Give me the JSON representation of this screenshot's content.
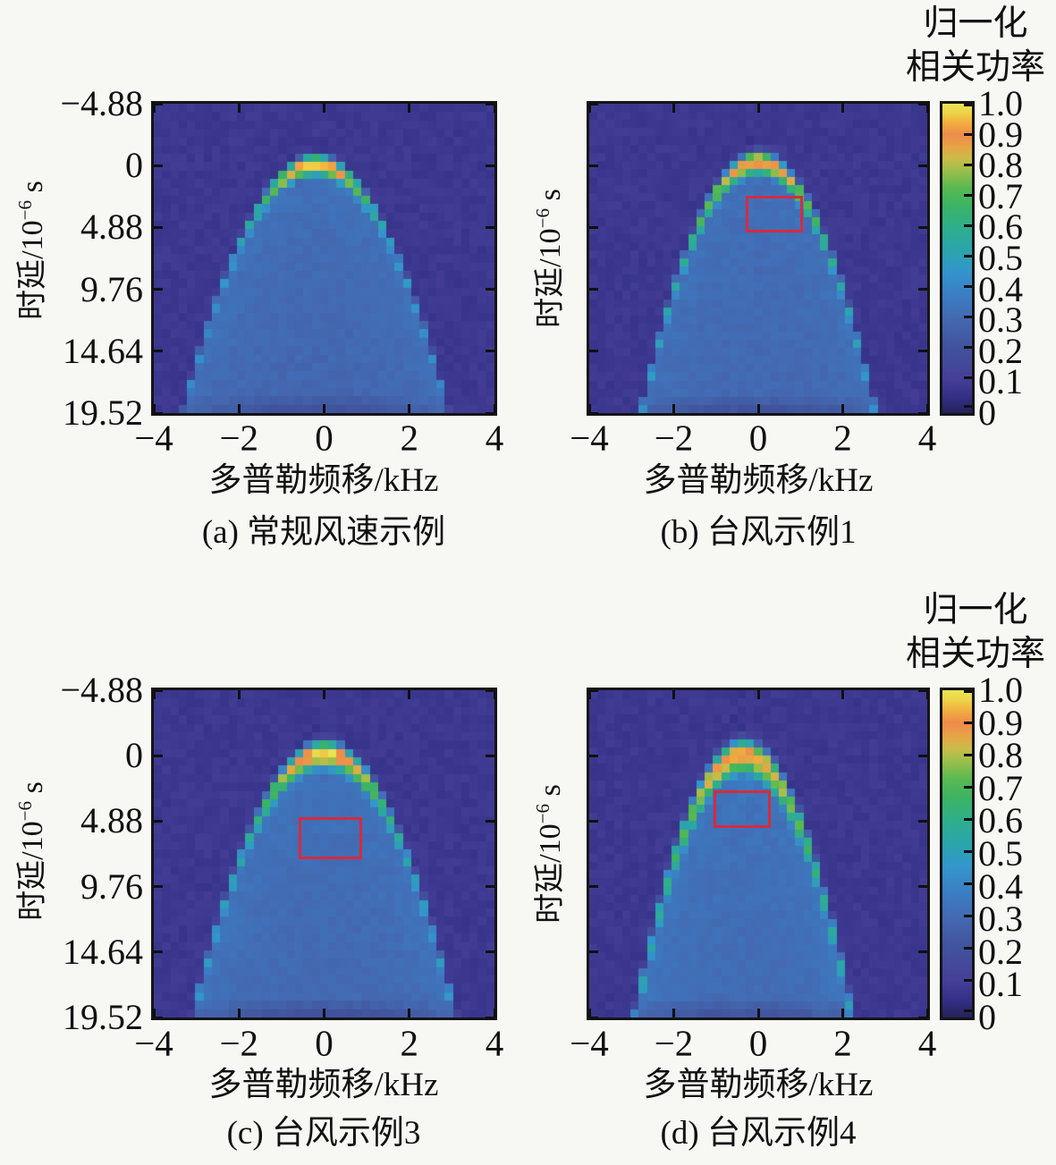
{
  "figure": {
    "background": "#f7f7f4",
    "text_color": "#111111",
    "frame_color": "#151515"
  },
  "chart_data": {
    "type": "heatmap",
    "x_range": [
      -4,
      4
    ],
    "y_range": [
      -4.88,
      19.52
    ],
    "axes": {
      "xlabel": "多普勒频移/kHz",
      "ylabel_prefix": "时延/10",
      "ylabel_sup": "−6",
      "ylabel_suffix": " s",
      "x_ticks": [
        "−4",
        "−2",
        "0",
        "2",
        "4"
      ],
      "x_tick_values": [
        -4,
        -2,
        0,
        2,
        4
      ],
      "y_ticks": [
        "−4.88",
        "0",
        "4.88",
        "9.76",
        "14.64",
        "19.52"
      ],
      "y_tick_values": [
        -4.88,
        0,
        4.88,
        9.76,
        14.64,
        19.52
      ]
    },
    "colorbar": {
      "title_line1": "归一化",
      "title_line2": "相关功率",
      "tick_labels": [
        "1.0",
        "0.9",
        "0.8",
        "0.7",
        "0.6",
        "0.5",
        "0.4",
        "0.3",
        "0.2",
        "0.1",
        "0"
      ],
      "tick_values": [
        1.0,
        0.9,
        0.8,
        0.7,
        0.6,
        0.5,
        0.4,
        0.3,
        0.2,
        0.1,
        0
      ]
    },
    "colormap_stops": [
      [
        0.0,
        "#24225a"
      ],
      [
        0.05,
        "#322f85"
      ],
      [
        0.11,
        "#453f97"
      ],
      [
        0.22,
        "#41549e"
      ],
      [
        0.3,
        "#4468b0"
      ],
      [
        0.38,
        "#3b7dc3"
      ],
      [
        0.46,
        "#3396cc"
      ],
      [
        0.53,
        "#2aa5ab"
      ],
      [
        0.6,
        "#2fae8c"
      ],
      [
        0.67,
        "#3bb364"
      ],
      [
        0.73,
        "#5ab950"
      ],
      [
        0.78,
        "#96be4b"
      ],
      [
        0.82,
        "#c8bc48"
      ],
      [
        0.86,
        "#e7a446"
      ],
      [
        0.9,
        "#ee8a4b"
      ],
      [
        0.94,
        "#f2b03e"
      ],
      [
        0.97,
        "#edd348"
      ],
      [
        1.0,
        "#e9e455"
      ]
    ],
    "annotation_color": "#d62b3e",
    "panels": [
      {
        "id": "a",
        "caption": "(a) 常规风速示例",
        "show_y_tick_labels": true,
        "has_colorbar": false,
        "annotation_rect": null,
        "ridge_model": {
          "f0": -0.2,
          "t0": -0.2,
          "curvature": 2.05,
          "ridge_width": 1.15,
          "peak_falloff": 0.85,
          "peak_value": 1.0,
          "arc_base_value": 0.44,
          "inside_near": 0.34,
          "inside_deep": 0.29,
          "background_value": 0.085,
          "seed": 1
        }
      },
      {
        "id": "b",
        "caption": "(b) 台风示例1",
        "show_y_tick_labels": false,
        "has_colorbar": true,
        "annotation_rect": {
          "f_min": -0.3,
          "f_max": 1.05,
          "t_min": 2.4,
          "t_max": 5.3
        },
        "ridge_model": {
          "f0": 0.0,
          "t0": -0.4,
          "curvature": 2.6,
          "ridge_width": 1.35,
          "peak_falloff": 1.05,
          "peak_value": 0.93,
          "arc_base_value": 0.46,
          "inside_near": 0.34,
          "inside_deep": 0.3,
          "background_value": 0.085,
          "seed": 2
        }
      },
      {
        "id": "c",
        "caption": "(c) 台风示例3",
        "show_y_tick_labels": true,
        "has_colorbar": false,
        "annotation_rect": {
          "f_min": -0.6,
          "f_max": 0.9,
          "t_min": 4.6,
          "t_max": 7.7
        },
        "ridge_model": {
          "f0": 0.0,
          "t0": -0.3,
          "curvature": 2.1,
          "ridge_width": 1.45,
          "peak_falloff": 0.95,
          "peak_value": 1.0,
          "arc_base_value": 0.46,
          "inside_near": 0.35,
          "inside_deep": 0.3,
          "background_value": 0.085,
          "seed": 3
        }
      },
      {
        "id": "d",
        "caption": "(d) 台风示例4",
        "show_y_tick_labels": false,
        "has_colorbar": true,
        "annotation_rect": {
          "f_min": -1.05,
          "f_max": 0.3,
          "t_min": 2.6,
          "t_max": 5.4
        },
        "ridge_model": {
          "f0": -0.35,
          "t0": -0.2,
          "curvature": 3.0,
          "ridge_width": 1.85,
          "peak_falloff": 1.15,
          "peak_value": 0.94,
          "arc_base_value": 0.46,
          "inside_near": 0.36,
          "inside_deep": 0.31,
          "background_value": 0.085,
          "seed": 4
        }
      }
    ]
  }
}
